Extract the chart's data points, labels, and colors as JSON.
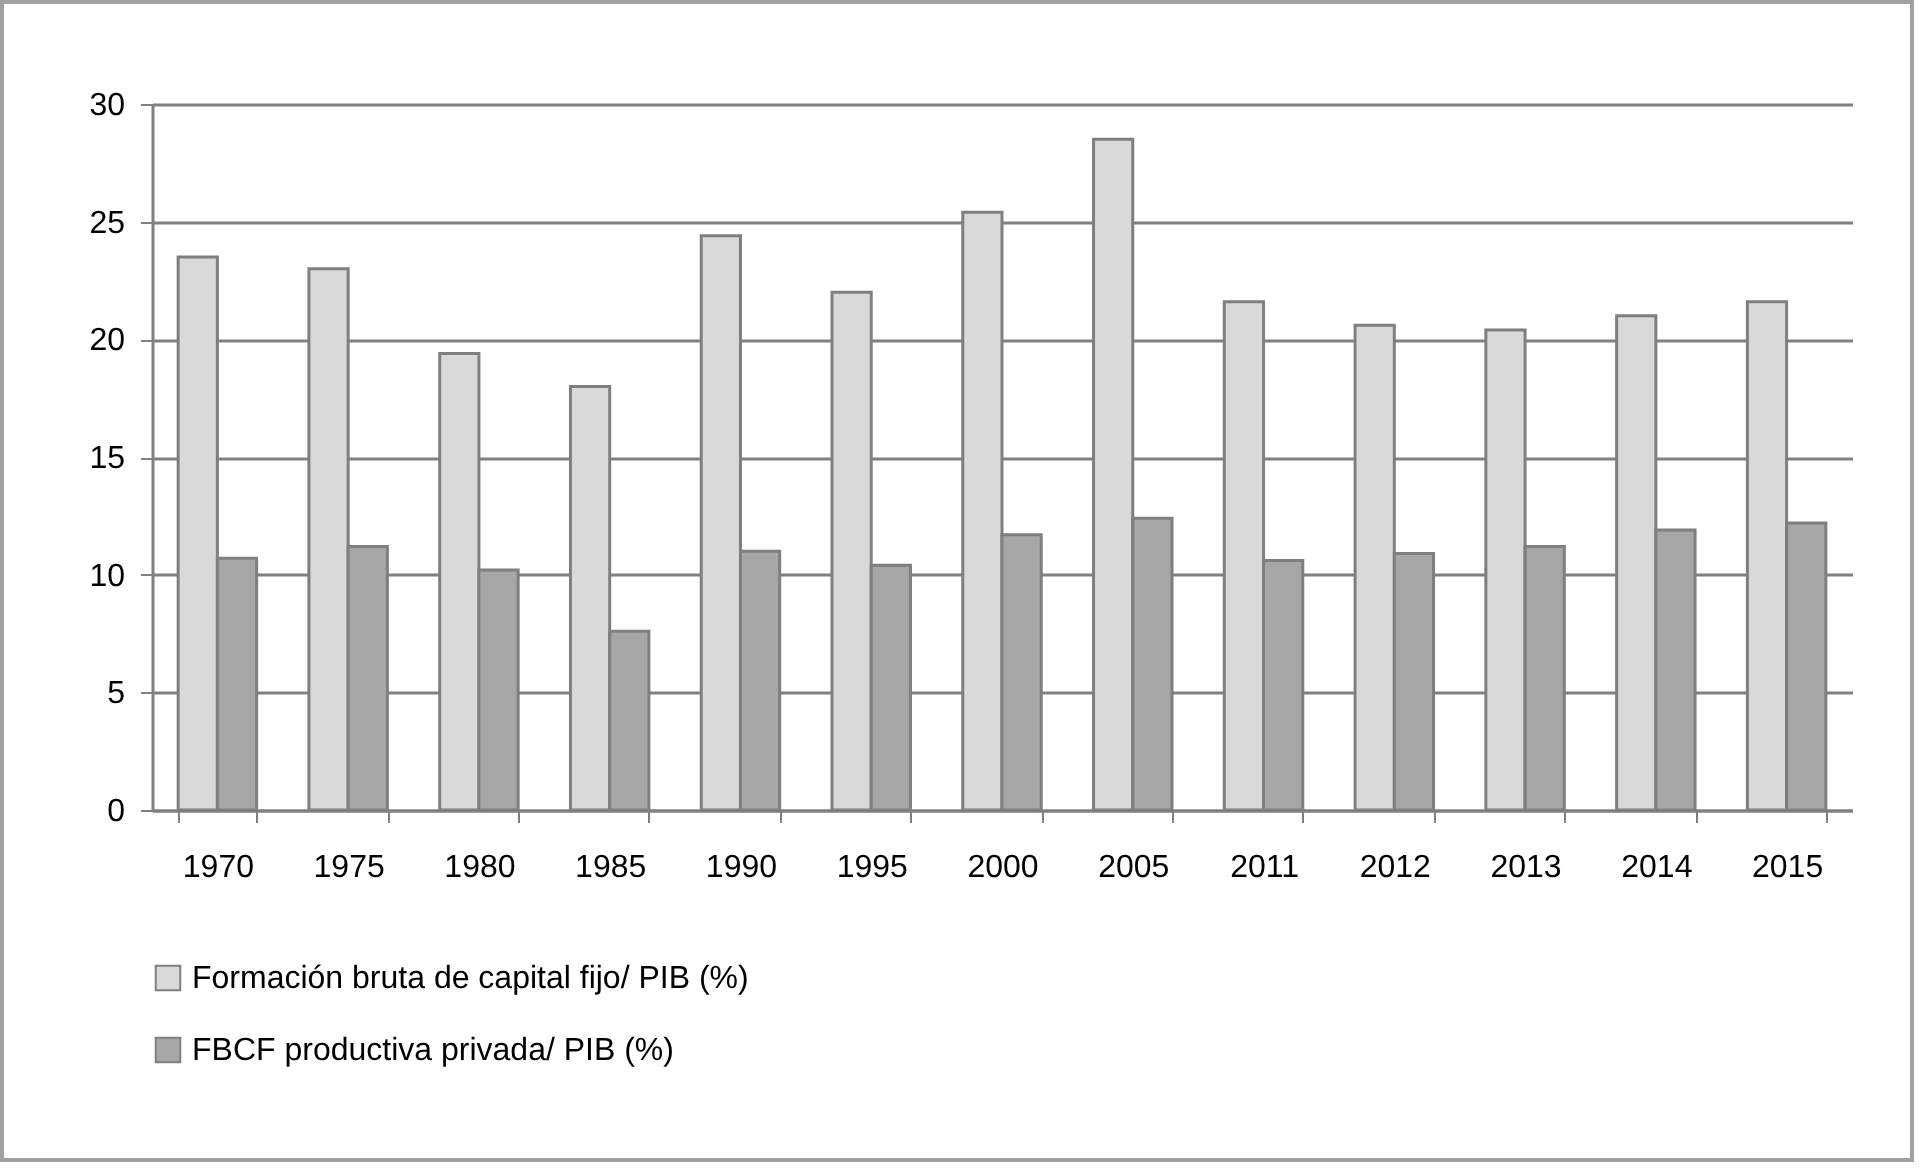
{
  "chart_data": {
    "type": "bar",
    "categories": [
      "1970",
      "1975",
      "1980",
      "1985",
      "1990",
      "1995",
      "2000",
      "2005",
      "2011",
      "2012",
      "2013",
      "2014",
      "2015"
    ],
    "series": [
      {
        "name": "Formación bruta de capital fijo/ PIB (%)",
        "color": "#d9d9d9",
        "values": [
          23.5,
          23.0,
          19.4,
          18.0,
          24.4,
          22.0,
          25.4,
          28.5,
          21.6,
          20.6,
          20.4,
          21.0,
          21.6
        ]
      },
      {
        "name": "FBCF productiva privada/ PIB (%)",
        "color": "#a6a6a6",
        "values": [
          10.7,
          11.2,
          10.2,
          7.6,
          11.0,
          10.4,
          11.7,
          12.4,
          10.6,
          10.9,
          11.2,
          11.9,
          12.2
        ]
      }
    ],
    "ylim": [
      0,
      30
    ],
    "yticks": [
      0,
      5,
      10,
      15,
      20,
      25,
      30
    ],
    "grid": "y",
    "legend": "bottom"
  }
}
